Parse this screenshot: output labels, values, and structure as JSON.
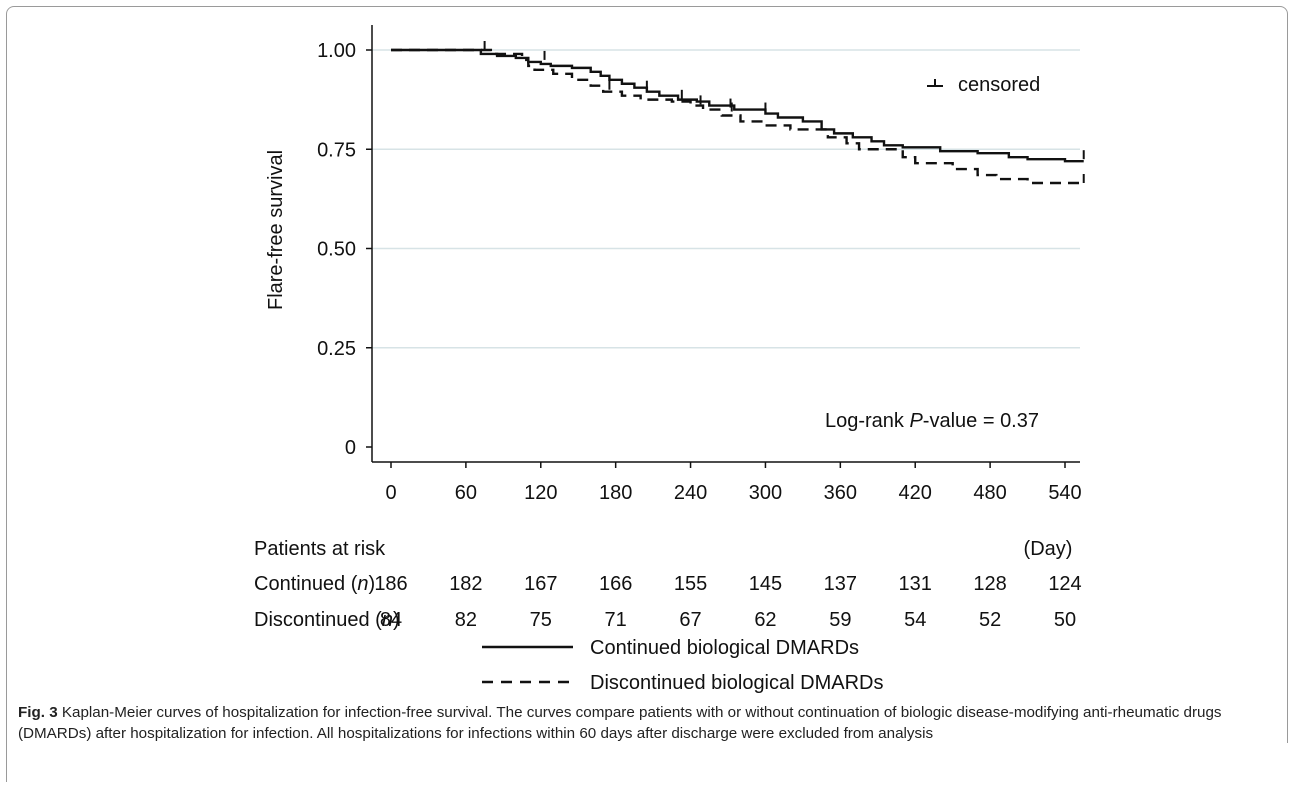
{
  "chart_data": {
    "type": "line",
    "ylabel": "Flare-free  survival",
    "y_ticks": [
      "1.00",
      "0.75",
      "0.50",
      "0.25",
      "0"
    ],
    "y_tick_values": [
      1.0,
      0.75,
      0.5,
      0.25,
      0
    ],
    "ylim": [
      0,
      1
    ],
    "x_ticks": [
      "0",
      "60",
      "120",
      "180",
      "240",
      "300",
      "360",
      "420",
      "480",
      "540"
    ],
    "x_tick_values": [
      0,
      60,
      120,
      180,
      240,
      300,
      360,
      420,
      480,
      540
    ],
    "xlim": [
      0,
      555
    ],
    "x_unit": "(Day)",
    "grid": "horizontal",
    "legend_censored": "censored",
    "annotation": {
      "prefix": "Log-rank ",
      "italic": "P",
      "suffix": "-value = 0.37"
    },
    "series": [
      {
        "name": "Continued biological DMARDs",
        "style": "solid",
        "points": [
          [
            0,
            1.0
          ],
          [
            65,
            1.0
          ],
          [
            72,
            0.99
          ],
          [
            85,
            0.985
          ],
          [
            100,
            0.98
          ],
          [
            110,
            0.97
          ],
          [
            120,
            0.965
          ],
          [
            128,
            0.96
          ],
          [
            145,
            0.955
          ],
          [
            160,
            0.945
          ],
          [
            168,
            0.935
          ],
          [
            175,
            0.925
          ],
          [
            185,
            0.915
          ],
          [
            195,
            0.905
          ],
          [
            205,
            0.895
          ],
          [
            215,
            0.885
          ],
          [
            230,
            0.875
          ],
          [
            245,
            0.87
          ],
          [
            255,
            0.86
          ],
          [
            275,
            0.85
          ],
          [
            300,
            0.84
          ],
          [
            310,
            0.83
          ],
          [
            330,
            0.82
          ],
          [
            345,
            0.8
          ],
          [
            355,
            0.79
          ],
          [
            370,
            0.78
          ],
          [
            385,
            0.77
          ],
          [
            395,
            0.76
          ],
          [
            410,
            0.755
          ],
          [
            440,
            0.745
          ],
          [
            470,
            0.74
          ],
          [
            495,
            0.73
          ],
          [
            510,
            0.725
          ],
          [
            540,
            0.72
          ],
          [
            555,
            0.72
          ]
        ],
        "censored": [
          [
            75,
            1.0
          ],
          [
            123,
            0.975
          ],
          [
            205,
            0.9
          ],
          [
            233,
            0.877
          ],
          [
            272,
            0.855
          ],
          [
            300,
            0.845
          ],
          [
            555,
            0.725
          ]
        ]
      },
      {
        "name": "Discontinued biological DMARDs",
        "style": "dashed",
        "points": [
          [
            0,
            1.0
          ],
          [
            70,
            1.0
          ],
          [
            80,
            0.99
          ],
          [
            105,
            0.975
          ],
          [
            110,
            0.96
          ],
          [
            115,
            0.95
          ],
          [
            130,
            0.94
          ],
          [
            145,
            0.925
          ],
          [
            160,
            0.91
          ],
          [
            170,
            0.895
          ],
          [
            185,
            0.885
          ],
          [
            200,
            0.875
          ],
          [
            225,
            0.87
          ],
          [
            240,
            0.86
          ],
          [
            250,
            0.85
          ],
          [
            265,
            0.835
          ],
          [
            280,
            0.82
          ],
          [
            300,
            0.81
          ],
          [
            320,
            0.8
          ],
          [
            350,
            0.78
          ],
          [
            365,
            0.765
          ],
          [
            375,
            0.75
          ],
          [
            410,
            0.73
          ],
          [
            420,
            0.715
          ],
          [
            450,
            0.7
          ],
          [
            470,
            0.685
          ],
          [
            485,
            0.675
          ],
          [
            510,
            0.665
          ],
          [
            555,
            0.66
          ]
        ],
        "censored": [
          [
            175,
            0.9
          ],
          [
            248,
            0.863
          ],
          [
            273,
            0.845
          ],
          [
            555,
            0.665
          ]
        ]
      }
    ],
    "risk_table": {
      "header": "Patients at risk",
      "rows": [
        {
          "label": "Continued (",
          "label_italic": "n",
          "label_close": ")",
          "values": [
            "186",
            "182",
            "167",
            "166",
            "155",
            "145",
            "137",
            "131",
            "128",
            "124"
          ]
        },
        {
          "label": "Discontinued (",
          "label_italic": "n",
          "label_close": ")",
          "values": [
            "84",
            "82",
            "75",
            "71",
            "67",
            "62",
            "59",
            "54",
            "52",
            "50"
          ]
        }
      ]
    }
  },
  "caption": {
    "lead": "Fig. 3",
    "text": "  Kaplan-Meier curves of hospitalization for infection-free survival. The curves compare patients with or without continuation of biologic disease-modifying anti-rheumatic drugs (DMARDs) after hospitalization for infection. All hospitalizations for infections within 60 days after discharge were excluded from analysis"
  },
  "colors": {
    "line": "#111111",
    "grid": "#d7e3e6",
    "frame": "#9a9a9a"
  }
}
